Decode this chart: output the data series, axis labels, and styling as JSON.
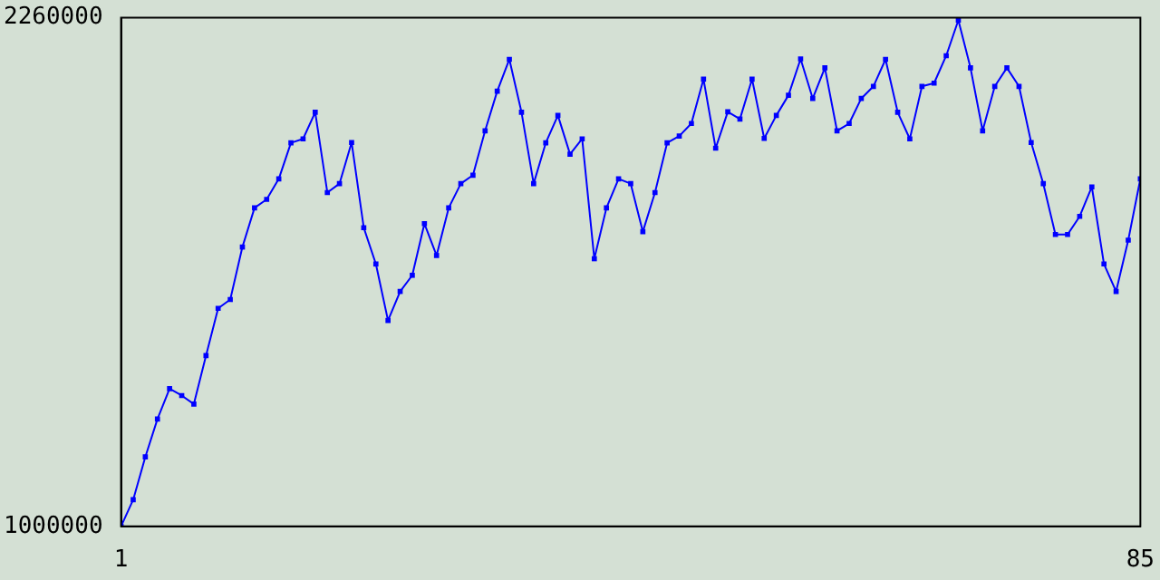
{
  "chart_data": {
    "type": "line",
    "x": [
      1,
      2,
      3,
      4,
      5,
      6,
      7,
      8,
      9,
      10,
      11,
      12,
      13,
      14,
      15,
      16,
      17,
      18,
      19,
      20,
      21,
      22,
      23,
      24,
      25,
      26,
      27,
      28,
      29,
      30,
      31,
      32,
      33,
      34,
      35,
      36,
      37,
      38,
      39,
      40,
      41,
      42,
      43,
      44,
      45,
      46,
      47,
      48,
      49,
      50,
      51,
      52,
      53,
      54,
      55,
      56,
      57,
      58,
      59,
      60,
      61,
      62,
      63,
      64,
      65,
      66,
      67,
      68,
      69,
      70,
      71,
      72,
      73,
      74,
      75,
      76,
      77,
      78,
      79,
      80,
      81,
      82,
      83,
      84,
      85
    ],
    "values": [
      1000000,
      1066000,
      1172000,
      1266000,
      1341000,
      1324000,
      1303000,
      1423000,
      1540000,
      1562000,
      1692000,
      1789000,
      1810000,
      1861000,
      1950000,
      1960000,
      2026000,
      1827000,
      1849000,
      1951000,
      1740000,
      1650000,
      1510000,
      1582000,
      1622000,
      1750000,
      1671000,
      1789000,
      1849000,
      1870000,
      1980000,
      2078000,
      2157000,
      2026000,
      1849000,
      1950000,
      2018000,
      1922000,
      1960000,
      1663000,
      1789000,
      1861000,
      1849000,
      1730000,
      1827000,
      1950000,
      1967000,
      1998000,
      2108000,
      1937000,
      2027000,
      2009000,
      2108000,
      1961000,
      2018000,
      2068000,
      2158000,
      2060000,
      2136000,
      1980000,
      1998000,
      2060000,
      2090000,
      2157000,
      2026000,
      1960000,
      2090000,
      2098000,
      2166000,
      2254000,
      2136000,
      1980000,
      2090000,
      2136000,
      2090000,
      1951000,
      1849000,
      1723000,
      1723000,
      1768000,
      1841000,
      1650000,
      1582000,
      1709000,
      1861000
    ],
    "color": "#0000ff",
    "xlim": [
      1,
      85
    ],
    "xticks": [
      1,
      85
    ],
    "ylim": [
      1000000,
      2260000
    ],
    "yticks": [
      1000000,
      2260000
    ],
    "grid": false,
    "marker": "square",
    "line_style": "solid"
  }
}
